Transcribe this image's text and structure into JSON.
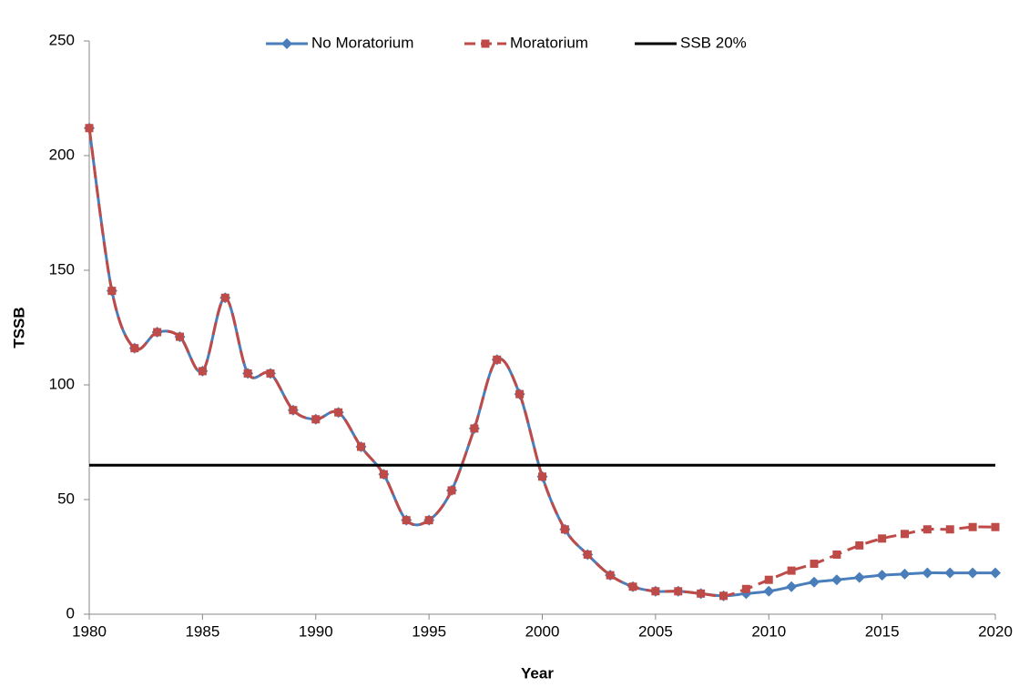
{
  "chart_data": {
    "type": "line",
    "x_label": "Year",
    "y_label": "TSSB",
    "x": [
      1980,
      1981,
      1982,
      1983,
      1984,
      1985,
      1986,
      1987,
      1988,
      1989,
      1990,
      1991,
      1992,
      1993,
      1994,
      1995,
      1996,
      1997,
      1998,
      1999,
      2000,
      2001,
      2002,
      2003,
      2004,
      2005,
      2006,
      2007,
      2008,
      2009,
      2010,
      2011,
      2012,
      2013,
      2014,
      2015,
      2016,
      2017,
      2018,
      2019,
      2020
    ],
    "series": [
      {
        "name": "No Moratorium",
        "color": "#4a7ebb",
        "marker": "diamond",
        "dashed": false,
        "values": [
          212,
          141,
          116,
          123,
          121,
          106,
          138,
          105,
          105,
          89,
          85,
          88,
          73,
          61,
          41,
          41,
          54,
          81,
          111,
          96,
          60,
          37,
          26,
          17,
          12,
          10,
          10,
          9,
          8,
          9,
          10,
          12,
          14,
          15,
          16,
          17,
          17.5,
          18,
          18,
          18,
          18
        ]
      },
      {
        "name": "Moratorium",
        "color": "#be4b48",
        "marker": "square",
        "dashed": true,
        "values": [
          212,
          141,
          116,
          123,
          121,
          106,
          138,
          105,
          105,
          89,
          85,
          88,
          73,
          61,
          41,
          41,
          54,
          81,
          111,
          96,
          60,
          37,
          26,
          17,
          12,
          10,
          10,
          9,
          8,
          11,
          15,
          19,
          22,
          26,
          30,
          33,
          35,
          37,
          37,
          38,
          38
        ]
      },
      {
        "name": "SSB 20%",
        "color": "#000000",
        "marker": "none",
        "dashed": false,
        "values": [
          65,
          65,
          65,
          65,
          65,
          65,
          65,
          65,
          65,
          65,
          65,
          65,
          65,
          65,
          65,
          65,
          65,
          65,
          65,
          65,
          65,
          65,
          65,
          65,
          65,
          65,
          65,
          65,
          65,
          65,
          65,
          65,
          65,
          65,
          65,
          65,
          65,
          65,
          65,
          65,
          65
        ]
      }
    ],
    "xlim": [
      1980,
      2020
    ],
    "xticks": [
      1980,
      1985,
      1990,
      1995,
      2000,
      2005,
      2010,
      2015,
      2020
    ],
    "ylim": [
      0,
      250
    ],
    "yticks": [
      0,
      50,
      100,
      150,
      200,
      250
    ],
    "grid": false,
    "legend": "top"
  }
}
